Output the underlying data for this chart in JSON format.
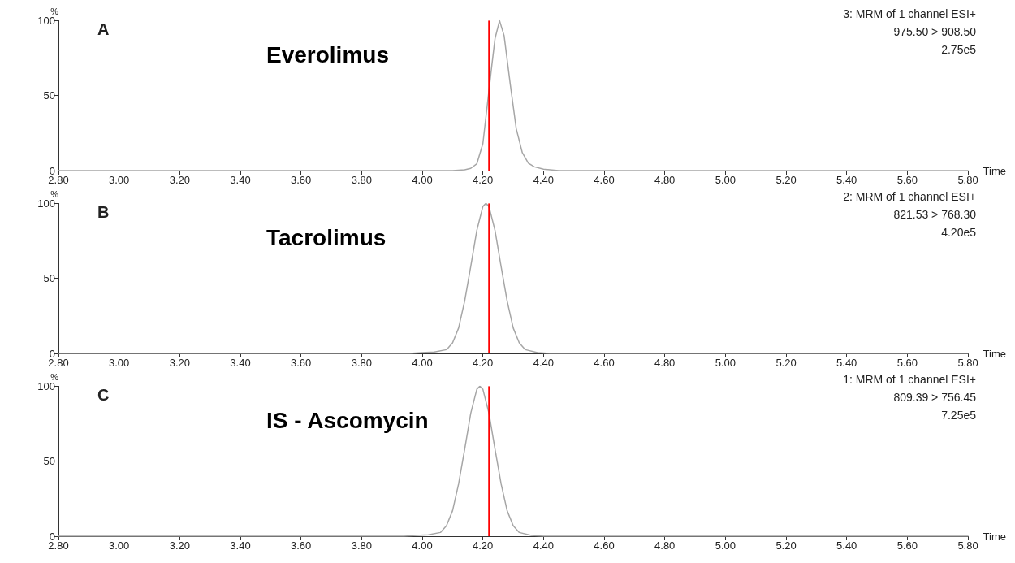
{
  "chart_data": [
    {
      "type": "line",
      "title": "A",
      "xlabel": "Time",
      "ylabel": "%",
      "annotations": [
        "Everolimus",
        "3: MRM of 1 channel ESI+",
        "975.50 > 908.50",
        "2.75e5"
      ],
      "series": [
        {
          "color": "#a6a6a6",
          "x": [
            2.8,
            4.1,
            4.14,
            4.16,
            4.18,
            4.2,
            4.23,
            4.24,
            4.255,
            4.27,
            4.29,
            4.31,
            4.33,
            4.35,
            4.37,
            4.4,
            4.45,
            5.8
          ],
          "values": [
            0,
            0,
            0.5,
            1.5,
            4.5,
            18,
            71,
            88,
            100,
            90,
            58,
            28,
            12,
            5,
            2.5,
            1,
            0,
            0
          ]
        }
      ],
      "xlim": [
        2.8,
        5.8
      ],
      "xticks": [
        {
          "value": 2.8,
          "label": "2.80"
        },
        {
          "value": 3.0,
          "label": "3.00"
        },
        {
          "value": 3.2,
          "label": "3.20"
        },
        {
          "value": 3.4,
          "label": "3.40"
        },
        {
          "value": 3.6,
          "label": "3.60"
        },
        {
          "value": 3.8,
          "label": "3.80"
        },
        {
          "value": 4.0,
          "label": "4.00"
        },
        {
          "value": 4.2,
          "label": "4.20"
        },
        {
          "value": 4.4,
          "label": "4.40"
        },
        {
          "value": 4.6,
          "label": "4.60"
        },
        {
          "value": 4.8,
          "label": "4.80"
        },
        {
          "value": 5.0,
          "label": "5.00"
        },
        {
          "value": 5.2,
          "label": "5.20"
        },
        {
          "value": 5.4,
          "label": "5.40"
        },
        {
          "value": 5.6,
          "label": "5.60"
        },
        {
          "value": 5.8,
          "label": "5.80"
        }
      ],
      "ylim": [
        0,
        100
      ],
      "yticks": [
        0,
        50,
        100
      ],
      "ref_lines": [
        {
          "axis": "x",
          "value": 4.22,
          "color": "#ff0000"
        }
      ],
      "grid": false,
      "marker": "none",
      "line_style": "solid"
    },
    {
      "type": "line",
      "title": "B",
      "xlabel": "Time",
      "ylabel": "%",
      "annotations": [
        "Tacrolimus",
        "2: MRM of 1 channel ESI+",
        "821.53 > 768.30",
        "4.20e5"
      ],
      "series": [
        {
          "color": "#a6a6a6",
          "x": [
            2.8,
            3.96,
            4.0,
            4.04,
            4.08,
            4.1,
            4.12,
            4.14,
            4.16,
            4.18,
            4.2,
            4.21,
            4.22,
            4.24,
            4.26,
            4.28,
            4.3,
            4.32,
            4.34,
            4.38,
            4.42,
            5.8
          ],
          "values": [
            0,
            0,
            0.5,
            1,
            2.5,
            7,
            17,
            35,
            58,
            82,
            98,
            100,
            98,
            82,
            58,
            35,
            17,
            7,
            2.5,
            0.5,
            0,
            0
          ]
        }
      ],
      "xlim": [
        2.8,
        5.8
      ],
      "xticks": [
        {
          "value": 2.8,
          "label": "2.80"
        },
        {
          "value": 3.0,
          "label": "3.00"
        },
        {
          "value": 3.2,
          "label": "3.20"
        },
        {
          "value": 3.4,
          "label": "3.40"
        },
        {
          "value": 3.6,
          "label": "3.60"
        },
        {
          "value": 3.8,
          "label": "3.80"
        },
        {
          "value": 4.0,
          "label": "4.00"
        },
        {
          "value": 4.2,
          "label": "4.20"
        },
        {
          "value": 4.4,
          "label": "4.40"
        },
        {
          "value": 4.6,
          "label": "4.60"
        },
        {
          "value": 4.8,
          "label": "4.80"
        },
        {
          "value": 5.0,
          "label": "5.00"
        },
        {
          "value": 5.2,
          "label": "5.20"
        },
        {
          "value": 5.4,
          "label": "5.40"
        },
        {
          "value": 5.6,
          "label": "5.60"
        },
        {
          "value": 5.8,
          "label": "5.80"
        }
      ],
      "ylim": [
        0,
        100
      ],
      "yticks": [
        0,
        50,
        100
      ],
      "ref_lines": [
        {
          "axis": "x",
          "value": 4.22,
          "color": "#ff0000"
        }
      ],
      "grid": false,
      "marker": "none",
      "line_style": "solid"
    },
    {
      "type": "line",
      "title": "C",
      "xlabel": "Time",
      "ylabel": "%",
      "annotations": [
        "IS - Ascomycin",
        "1: MRM of 1 channel ESI+",
        "809.39 > 756.45",
        "7.25e5"
      ],
      "series": [
        {
          "color": "#a6a6a6",
          "x": [
            2.8,
            3.94,
            3.98,
            4.02,
            4.06,
            4.08,
            4.1,
            4.12,
            4.14,
            4.16,
            4.18,
            4.19,
            4.2,
            4.22,
            4.24,
            4.26,
            4.28,
            4.3,
            4.32,
            4.36,
            4.4,
            5.8
          ],
          "values": [
            0,
            0,
            0.5,
            1,
            2.5,
            7,
            17,
            35,
            58,
            82,
            98,
            100,
            98,
            82,
            58,
            35,
            17,
            7,
            2.5,
            0.5,
            0,
            0
          ]
        }
      ],
      "xlim": [
        2.8,
        5.8
      ],
      "xticks": [
        {
          "value": 2.8,
          "label": "2.80"
        },
        {
          "value": 3.0,
          "label": "3.00"
        },
        {
          "value": 3.2,
          "label": "3.20"
        },
        {
          "value": 3.4,
          "label": "3.40"
        },
        {
          "value": 3.6,
          "label": "3.60"
        },
        {
          "value": 3.8,
          "label": "3.80"
        },
        {
          "value": 4.0,
          "label": "4.00"
        },
        {
          "value": 4.2,
          "label": "4.20"
        },
        {
          "value": 4.4,
          "label": "4.40"
        },
        {
          "value": 4.6,
          "label": "4.60"
        },
        {
          "value": 4.8,
          "label": "4.80"
        },
        {
          "value": 5.0,
          "label": "5.00"
        },
        {
          "value": 5.2,
          "label": "5.20"
        },
        {
          "value": 5.4,
          "label": "5.40"
        },
        {
          "value": 5.6,
          "label": "5.60"
        },
        {
          "value": 5.8,
          "label": "5.80"
        }
      ],
      "ylim": [
        0,
        100
      ],
      "yticks": [
        0,
        50,
        100
      ],
      "ref_lines": [
        {
          "axis": "x",
          "value": 4.22,
          "color": "#ff0000"
        }
      ],
      "grid": false,
      "marker": "none",
      "line_style": "solid"
    }
  ]
}
